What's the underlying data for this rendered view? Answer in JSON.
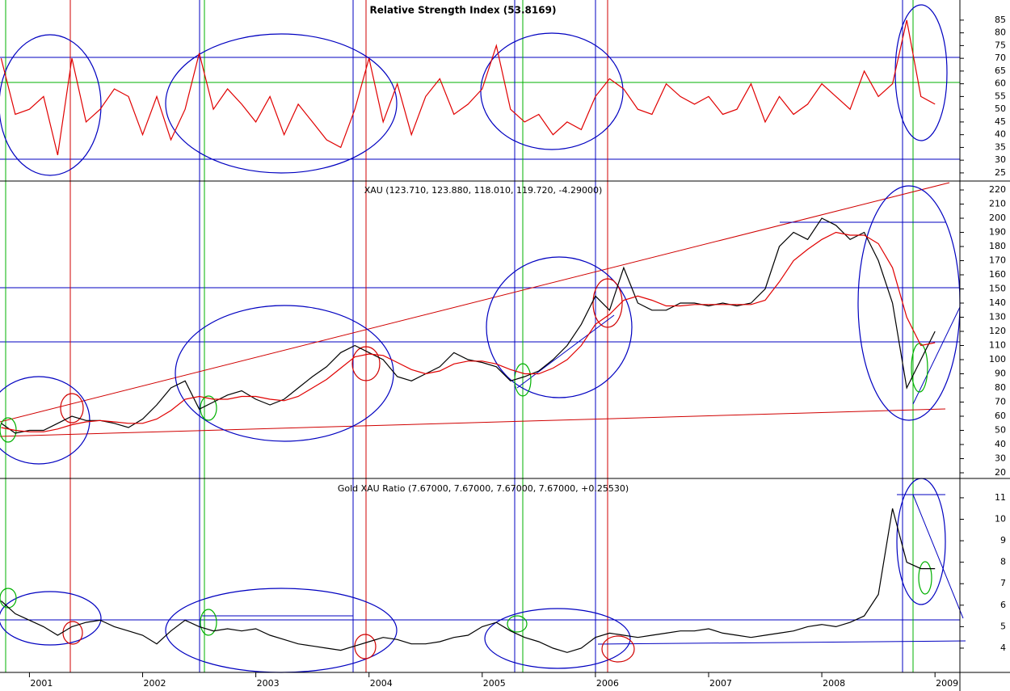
{
  "chart_data": [
    {
      "type": "line",
      "title": "Relative Strength Index (53.8169)",
      "x": [
        2000.75,
        2000.875,
        2001,
        2001.125,
        2001.25,
        2001.375,
        2001.5,
        2001.625,
        2001.75,
        2001.875,
        2002,
        2002.125,
        2002.25,
        2002.375,
        2002.5,
        2002.625,
        2002.75,
        2002.875,
        2003,
        2003.125,
        2003.25,
        2003.375,
        2003.5,
        2003.625,
        2003.75,
        2003.875,
        2004,
        2004.125,
        2004.25,
        2004.375,
        2004.5,
        2004.625,
        2004.75,
        2004.875,
        2005,
        2005.125,
        2005.25,
        2005.375,
        2005.5,
        2005.625,
        2005.75,
        2005.875,
        2006,
        2006.125,
        2006.25,
        2006.375,
        2006.5,
        2006.625,
        2006.75,
        2006.875,
        2007,
        2007.125,
        2007.25,
        2007.375,
        2007.5,
        2007.625,
        2007.75,
        2007.875,
        2008,
        2008.125,
        2008.25,
        2008.375,
        2008.5,
        2008.625,
        2008.75,
        2008.875,
        2009
      ],
      "xlim": [
        2000.74,
        2009.22
      ],
      "ylim": [
        21.8,
        92.9
      ],
      "yticks": [
        25,
        30,
        35,
        40,
        45,
        50,
        55,
        60,
        65,
        70,
        75,
        80,
        85
      ],
      "series": [
        {
          "color": "#e00000",
          "values": [
            70,
            48,
            50,
            55,
            32,
            70,
            45,
            50,
            58,
            55,
            40,
            55,
            38,
            50,
            72,
            50,
            58,
            52,
            45,
            55,
            40,
            52,
            45,
            38,
            35,
            50,
            70,
            45,
            60,
            40,
            55,
            62,
            48,
            52,
            58,
            75,
            50,
            45,
            48,
            40,
            45,
            42,
            55,
            62,
            58,
            50,
            48,
            60,
            55,
            52,
            55,
            48,
            50,
            60,
            45,
            55,
            48,
            52,
            60,
            55,
            50,
            65,
            55,
            60,
            85,
            55,
            52
          ]
        }
      ]
    },
    {
      "type": "line",
      "title": "XAU (123.710, 123.880, 118.010, 119.720, -4.29000)",
      "x": [
        2000.75,
        2000.875,
        2001,
        2001.125,
        2001.25,
        2001.375,
        2001.5,
        2001.625,
        2001.75,
        2001.875,
        2002,
        2002.125,
        2002.25,
        2002.375,
        2002.5,
        2002.625,
        2002.75,
        2002.875,
        2003,
        2003.125,
        2003.25,
        2003.375,
        2003.5,
        2003.625,
        2003.75,
        2003.875,
        2004,
        2004.125,
        2004.25,
        2004.375,
        2004.5,
        2004.625,
        2004.75,
        2004.875,
        2005,
        2005.125,
        2005.25,
        2005.375,
        2005.5,
        2005.625,
        2005.75,
        2005.875,
        2006,
        2006.125,
        2006.25,
        2006.375,
        2006.5,
        2006.625,
        2006.75,
        2006.875,
        2007,
        2007.125,
        2007.25,
        2007.375,
        2007.5,
        2007.625,
        2007.75,
        2007.875,
        2008,
        2008.125,
        2008.25,
        2008.375,
        2008.5,
        2008.625,
        2008.75,
        2008.875,
        2009
      ],
      "xlim": [
        2000.74,
        2009.22
      ],
      "ylim": [
        16,
        226.3
      ],
      "yticks": [
        20,
        30,
        40,
        50,
        60,
        70,
        80,
        90,
        100,
        110,
        120,
        130,
        140,
        150,
        160,
        170,
        180,
        190,
        200,
        210,
        220
      ],
      "series": [
        {
          "color": "#000000",
          "values": [
            55,
            48,
            50,
            50,
            55,
            60,
            57,
            57,
            55,
            52,
            58,
            68,
            80,
            85,
            65,
            70,
            75,
            78,
            72,
            68,
            72,
            80,
            88,
            95,
            105,
            110,
            105,
            100,
            88,
            85,
            90,
            95,
            105,
            100,
            98,
            95,
            85,
            88,
            92,
            100,
            110,
            125,
            145,
            135,
            165,
            140,
            135,
            135,
            140,
            140,
            138,
            140,
            138,
            140,
            150,
            180,
            190,
            185,
            200,
            195,
            185,
            190,
            170,
            140,
            80,
            100,
            120
          ]
        },
        {
          "color": "#e00000",
          "values": [
            52,
            50,
            49,
            49,
            51,
            54,
            56,
            57,
            56,
            55,
            55,
            58,
            64,
            72,
            74,
            72,
            72,
            74,
            74,
            72,
            71,
            74,
            80,
            86,
            94,
            102,
            104,
            103,
            98,
            93,
            90,
            92,
            97,
            99,
            99,
            97,
            93,
            90,
            90,
            94,
            100,
            110,
            125,
            132,
            142,
            145,
            142,
            138,
            138,
            139,
            139,
            139,
            139,
            139,
            142,
            155,
            170,
            178,
            185,
            190,
            188,
            188,
            182,
            165,
            130,
            110,
            112
          ]
        }
      ]
    },
    {
      "type": "line",
      "title": "Gold XAU Ratio (7.67000, 7.67000, 7.67000, 7.67000, +0.25530)",
      "x": [
        2000.75,
        2000.875,
        2001,
        2001.125,
        2001.25,
        2001.375,
        2001.5,
        2001.625,
        2001.75,
        2001.875,
        2002,
        2002.125,
        2002.25,
        2002.375,
        2002.5,
        2002.625,
        2002.75,
        2002.875,
        2003,
        2003.125,
        2003.25,
        2003.375,
        2003.5,
        2003.625,
        2003.75,
        2003.875,
        2004,
        2004.125,
        2004.25,
        2004.375,
        2004.5,
        2004.625,
        2004.75,
        2004.875,
        2005,
        2005.125,
        2005.25,
        2005.375,
        2005.5,
        2005.625,
        2005.75,
        2005.875,
        2006,
        2006.125,
        2006.25,
        2006.375,
        2006.5,
        2006.625,
        2006.75,
        2006.875,
        2007,
        2007.125,
        2007.25,
        2007.375,
        2007.5,
        2007.625,
        2007.75,
        2007.875,
        2008,
        2008.125,
        2008.25,
        2008.375,
        2008.5,
        2008.625,
        2008.75,
        2008.875,
        2009
      ],
      "xlim": [
        2000.74,
        2009.22
      ],
      "ylim": [
        2.87,
        11.9
      ],
      "xticks": [
        2001,
        2002,
        2003,
        2004,
        2005,
        2006,
        2007,
        2008,
        2009
      ],
      "yticks": [
        4,
        5,
        6,
        7,
        8,
        9,
        10,
        11
      ],
      "series": [
        {
          "color": "#000000",
          "values": [
            6.2,
            5.6,
            5.3,
            5.0,
            4.6,
            5.0,
            5.2,
            5.3,
            5.0,
            4.8,
            4.6,
            4.2,
            4.8,
            5.3,
            5.0,
            4.8,
            4.9,
            4.8,
            4.9,
            4.6,
            4.4,
            4.2,
            4.1,
            4.0,
            3.9,
            4.1,
            4.3,
            4.5,
            4.4,
            4.2,
            4.2,
            4.3,
            4.5,
            4.6,
            5.0,
            5.2,
            4.8,
            4.5,
            4.3,
            4.0,
            3.8,
            4.0,
            4.5,
            4.7,
            4.6,
            4.5,
            4.6,
            4.7,
            4.8,
            4.8,
            4.9,
            4.7,
            4.6,
            4.5,
            4.6,
            4.7,
            4.8,
            5.0,
            5.1,
            5.0,
            5.2,
            5.5,
            6.5,
            10.5,
            8.0,
            7.7,
            7.7
          ]
        }
      ]
    }
  ]
}
